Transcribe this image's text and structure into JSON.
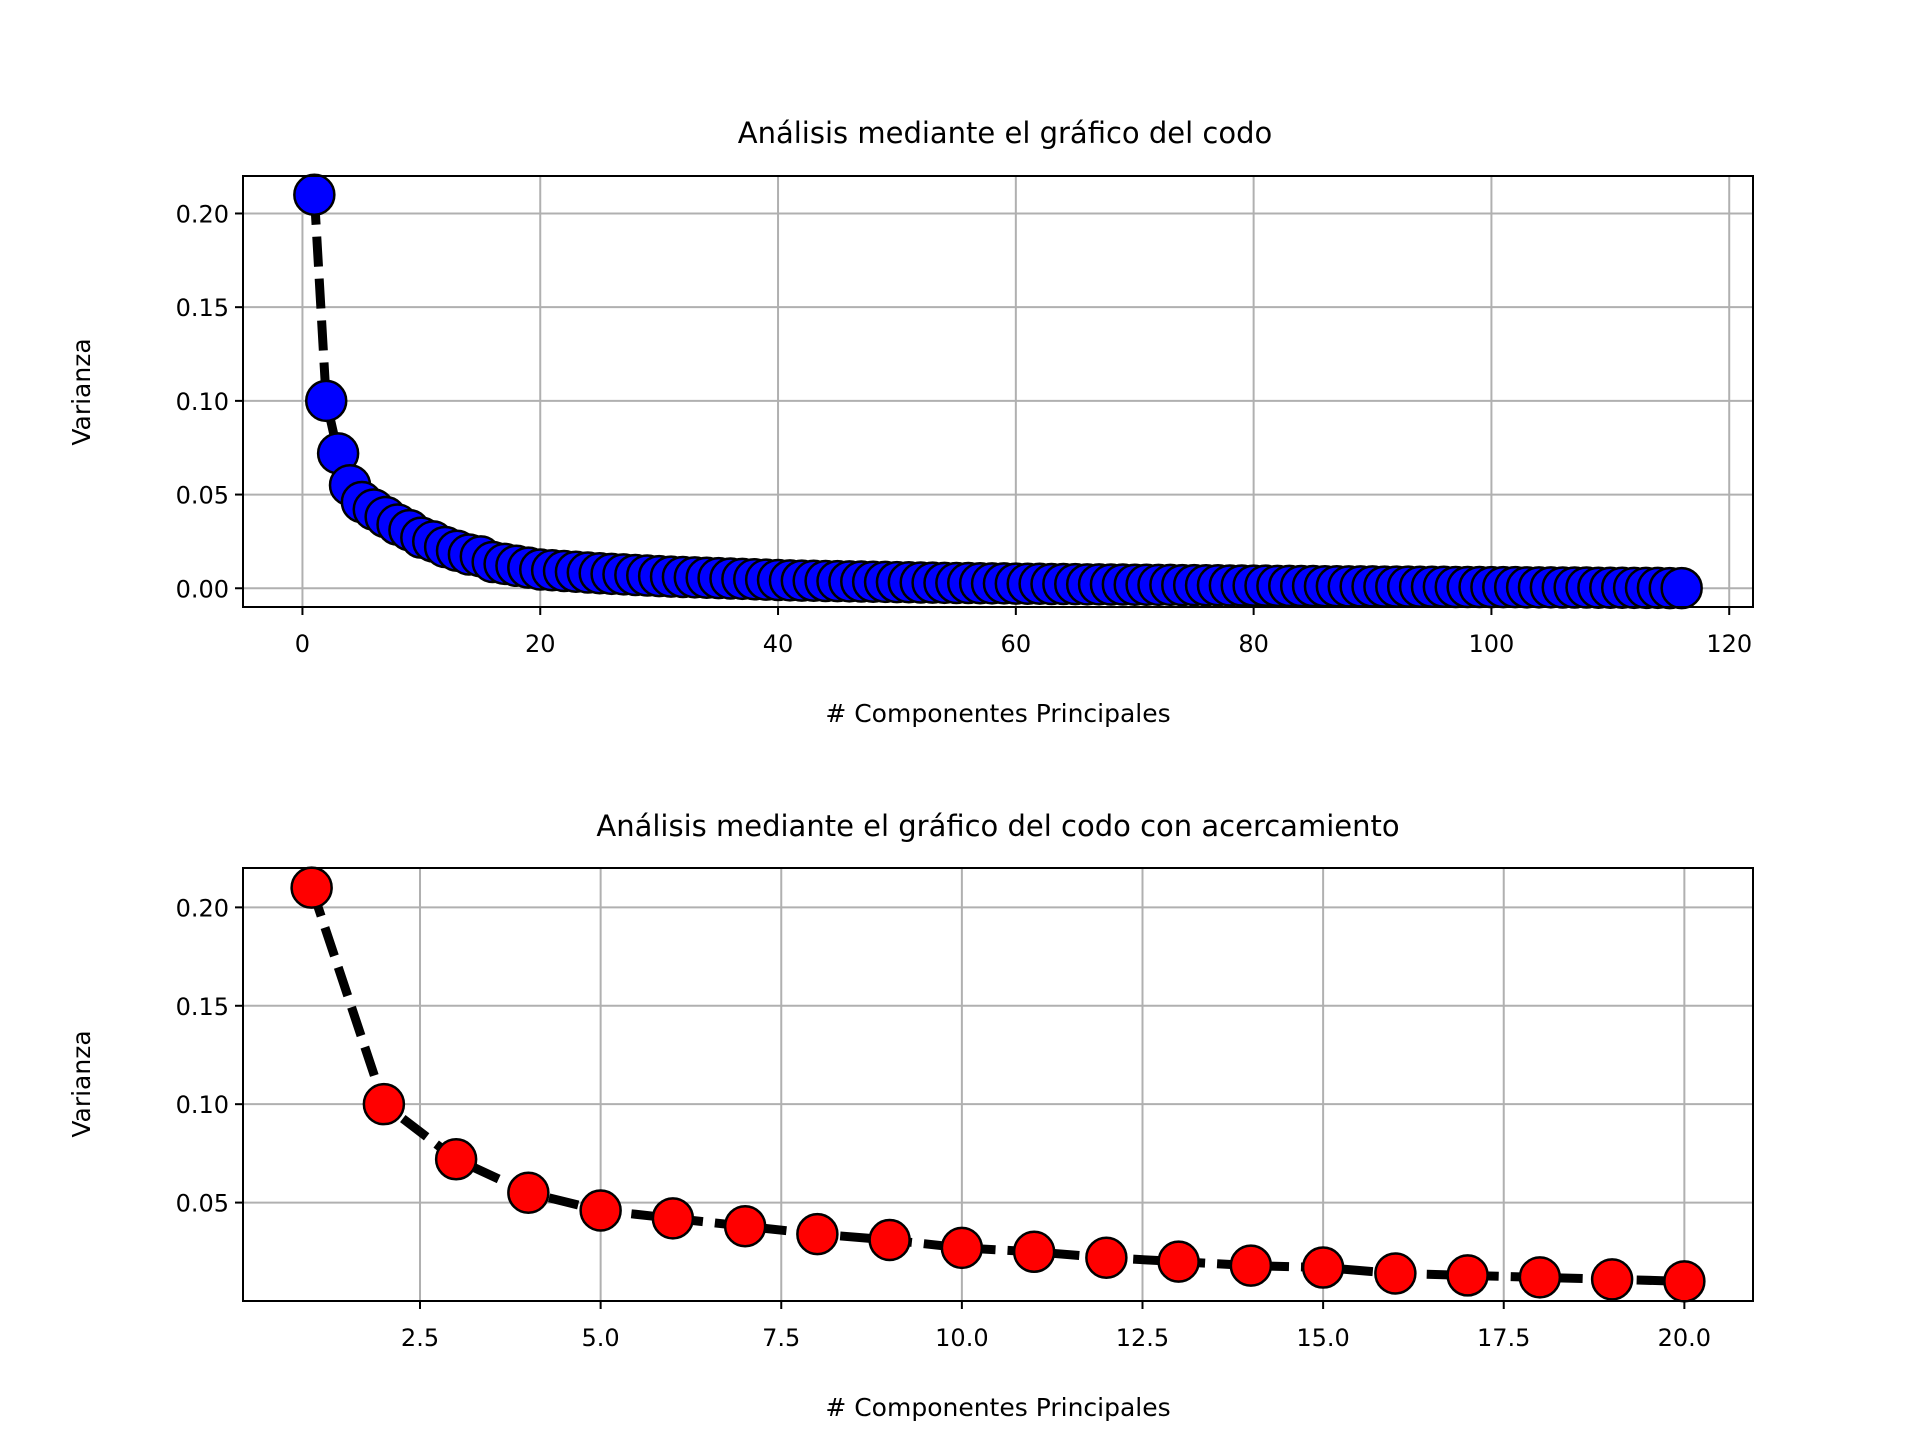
{
  "chart_data": [
    {
      "type": "line",
      "title": "Análisis mediante el gráfico del codo",
      "xlabel": "# Componentes Principales",
      "ylabel": "Varianza",
      "xlim": [
        -5,
        122
      ],
      "ylim": [
        -0.01,
        0.22
      ],
      "xticks": [
        0,
        20,
        40,
        60,
        80,
        100,
        120
      ],
      "xtick_labels": [
        "0",
        "20",
        "40",
        "60",
        "80",
        "100",
        "120"
      ],
      "yticks": [
        0.0,
        0.05,
        0.1,
        0.15,
        0.2
      ],
      "ytick_labels": [
        "0.00",
        "0.05",
        "0.10",
        "0.15",
        "0.20"
      ],
      "grid": true,
      "marker_color": "#0000ff",
      "line_style": "dashed",
      "series": [
        {
          "x": [
            1,
            2,
            3,
            4,
            5,
            6,
            7,
            8,
            9,
            10,
            11,
            12,
            13,
            14,
            15,
            16,
            17,
            18,
            19,
            20,
            21,
            22,
            23,
            24,
            25,
            26,
            27,
            28,
            29,
            30,
            31,
            32,
            33,
            34,
            35,
            36,
            37,
            38,
            39,
            40,
            41,
            42,
            43,
            44,
            45,
            46,
            47,
            48,
            49,
            50,
            51,
            52,
            53,
            54,
            55,
            56,
            57,
            58,
            59,
            60,
            61,
            62,
            63,
            64,
            65,
            66,
            67,
            68,
            69,
            70,
            71,
            72,
            73,
            74,
            75,
            76,
            77,
            78,
            79,
            80,
            81,
            82,
            83,
            84,
            85,
            86,
            87,
            88,
            89,
            90,
            91,
            92,
            93,
            94,
            95,
            96,
            97,
            98,
            99,
            100,
            101,
            102,
            103,
            104,
            105,
            106,
            107,
            108,
            109,
            110,
            111,
            112,
            113,
            114,
            115,
            116
          ],
          "y": [
            0.21,
            0.1,
            0.072,
            0.055,
            0.046,
            0.042,
            0.038,
            0.034,
            0.031,
            0.027,
            0.025,
            0.022,
            0.02,
            0.018,
            0.017,
            0.014,
            0.013,
            0.012,
            0.011,
            0.01,
            0.0096,
            0.0092,
            0.0088,
            0.0084,
            0.008,
            0.0077,
            0.0074,
            0.0071,
            0.0068,
            0.0065,
            0.0062,
            0.006,
            0.0058,
            0.0056,
            0.0054,
            0.0052,
            0.005,
            0.0048,
            0.0046,
            0.0044,
            0.0042,
            0.0041,
            0.004,
            0.0039,
            0.0038,
            0.0037,
            0.0036,
            0.0035,
            0.0034,
            0.0033,
            0.0032,
            0.0031,
            0.003,
            0.0029,
            0.0028,
            0.0028,
            0.0027,
            0.0026,
            0.0026,
            0.0025,
            0.0024,
            0.0024,
            0.0023,
            0.0023,
            0.0022,
            0.0021,
            0.0021,
            0.002,
            0.002,
            0.0019,
            0.0019,
            0.0018,
            0.0018,
            0.0017,
            0.0017,
            0.0016,
            0.0016,
            0.0015,
            0.0015,
            0.0014,
            0.0014,
            0.0013,
            0.0013,
            0.0012,
            0.0012,
            0.0011,
            0.0011,
            0.001,
            0.001,
            0.001,
            0.0009,
            0.0009,
            0.0009,
            0.0008,
            0.0008,
            0.0008,
            0.0007,
            0.0007,
            0.0007,
            0.0006,
            0.0006,
            0.0006,
            0.0005,
            0.0005,
            0.0005,
            0.0004,
            0.0004,
            0.0004,
            0.0003,
            0.0003,
            0.0003,
            0.0002,
            0.0002,
            0.0002,
            0.0001,
            0.0001
          ]
        }
      ]
    },
    {
      "type": "line",
      "title": "Análisis mediante el gráfico del codo con acercamiento",
      "xlabel": "# Componentes Principales",
      "ylabel": "Varianza",
      "xlim": [
        0.05,
        20.95
      ],
      "ylim": [
        0.0,
        0.22
      ],
      "xticks": [
        2.5,
        5.0,
        7.5,
        10.0,
        12.5,
        15.0,
        17.5,
        20.0
      ],
      "xtick_labels": [
        "2.5",
        "5.0",
        "7.5",
        "10.0",
        "12.5",
        "15.0",
        "17.5",
        "20.0"
      ],
      "yticks": [
        0.05,
        0.1,
        0.15,
        0.2
      ],
      "ytick_labels": [
        "0.05",
        "0.10",
        "0.15",
        "0.20"
      ],
      "grid": true,
      "marker_color": "#ff0000",
      "line_style": "dashed",
      "series": [
        {
          "x": [
            1,
            2,
            3,
            4,
            5,
            6,
            7,
            8,
            9,
            10,
            11,
            12,
            13,
            14,
            15,
            16,
            17,
            18,
            19,
            20
          ],
          "y": [
            0.21,
            0.1,
            0.072,
            0.055,
            0.046,
            0.042,
            0.038,
            0.034,
            0.031,
            0.027,
            0.025,
            0.022,
            0.02,
            0.018,
            0.017,
            0.014,
            0.013,
            0.012,
            0.011,
            0.01
          ]
        }
      ]
    }
  ]
}
